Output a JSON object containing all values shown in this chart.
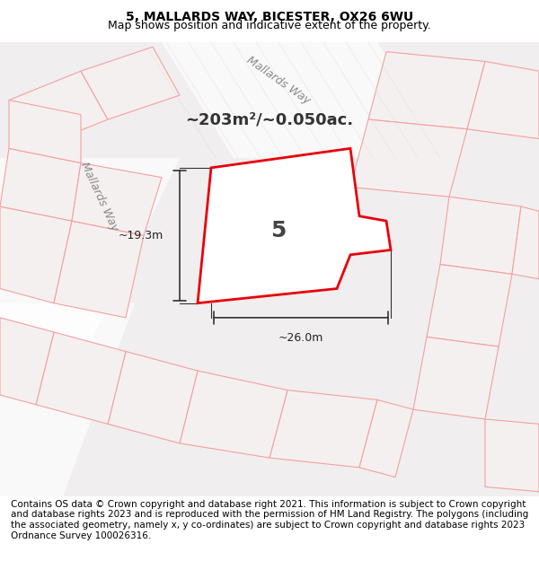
{
  "title_line1": "5, MALLARDS WAY, BICESTER, OX26 6WU",
  "title_line2": "Map shows position and indicative extent of the property.",
  "area_text": "~203m²/~0.050ac.",
  "property_number": "5",
  "dim_width": "~26.0m",
  "dim_height": "~19.3m",
  "footer_text": "Contains OS data © Crown copyright and database right 2021. This information is subject to Crown copyright and database rights 2023 and is reproduced with the permission of HM Land Registry. The polygons (including the associated geometry, namely x, y co-ordinates) are subject to Crown copyright and database rights 2023 Ordnance Survey 100026316.",
  "bg_color": "#f0eeee",
  "map_bg": "#f5f3f3",
  "road_color": "#f5f3f3",
  "plot_line_color": "#e8000a",
  "nearby_line_color": "#f4a0a0",
  "road_label1": "Mallards Way",
  "road_label2": "Mallards Way",
  "title_fontsize": 10,
  "subtitle_fontsize": 9,
  "footer_fontsize": 7.5
}
